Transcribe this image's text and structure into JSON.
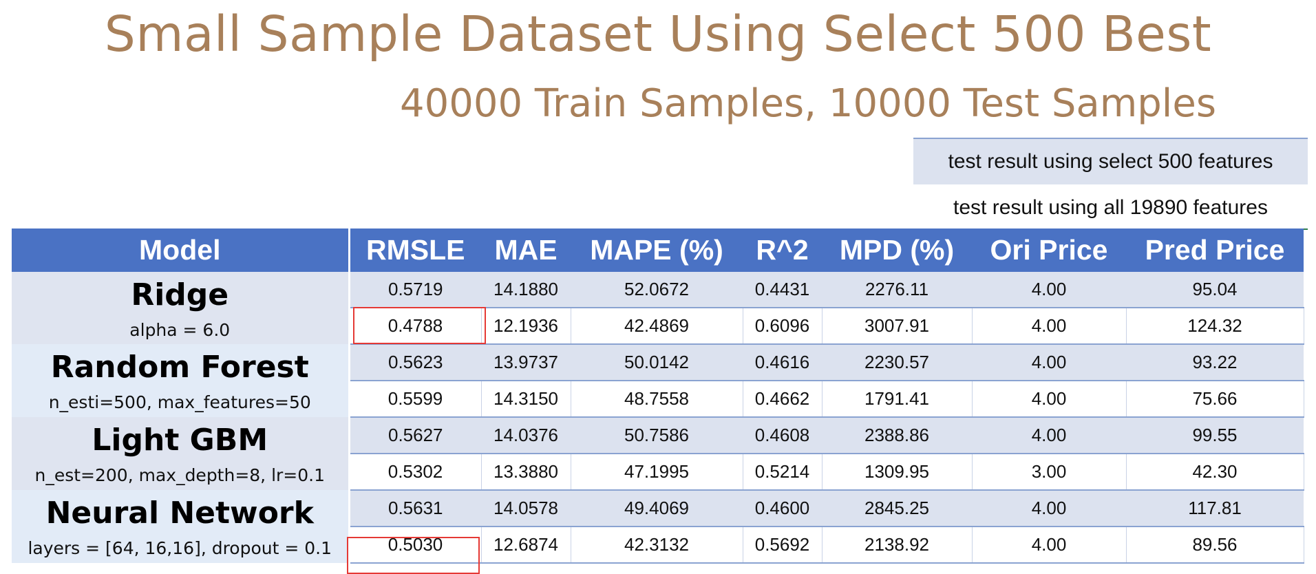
{
  "title": "Small Sample Dataset Using Select 500 Best",
  "subtitle": "40000 Train Samples, 10000 Test Samples",
  "legend": {
    "select_label": "test result using select 500 features",
    "all_label": "test result using all 19890 features"
  },
  "table": {
    "headers": [
      "Model",
      "RMSLE",
      "MAE",
      "MAPE (%)",
      "R^2",
      "MPD (%)",
      "Ori Price",
      "Pred Price"
    ],
    "models": [
      {
        "name": "Ridge",
        "params": "alpha = 6.0",
        "rows": [
          [
            "0.5719",
            "14.1880",
            "52.0672",
            "0.4431",
            "2276.11",
            "4.00",
            "95.04"
          ],
          [
            "0.4788",
            "12.1936",
            "42.4869",
            "0.6096",
            "3007.91",
            "4.00",
            "124.32"
          ]
        ]
      },
      {
        "name": "Random Forest",
        "params": "n_esti=500, max_features=50",
        "rows": [
          [
            "0.5623",
            "13.9737",
            "50.0142",
            "0.4616",
            "2230.57",
            "4.00",
            "93.22"
          ],
          [
            "0.5599",
            "14.3150",
            "48.7558",
            "0.4662",
            "1791.41",
            "4.00",
            "75.66"
          ]
        ]
      },
      {
        "name": "Light GBM",
        "params": "n_est=200, max_depth=8, lr=0.1",
        "rows": [
          [
            "0.5627",
            "14.0376",
            "50.7586",
            "0.4608",
            "2388.86",
            "4.00",
            "99.55"
          ],
          [
            "0.5302",
            "13.3880",
            "47.1995",
            "0.5214",
            "1309.95",
            "3.00",
            "42.30"
          ]
        ]
      },
      {
        "name": "Neural Network",
        "params": "layers = [64, 16,16], dropout = 0.1",
        "rows": [
          [
            "0.5631",
            "14.0578",
            "49.4069",
            "0.4600",
            "2845.25",
            "4.00",
            "117.81"
          ],
          [
            "0.5030",
            "12.6874",
            "42.3132",
            "0.5692",
            "2138.92",
            "4.00",
            "89.56"
          ]
        ]
      }
    ]
  },
  "colors": {
    "title": "#a8805a",
    "header_bg": "#4a72c4",
    "shade_row": "#dce2ef",
    "highlight_box": "#e53935"
  }
}
